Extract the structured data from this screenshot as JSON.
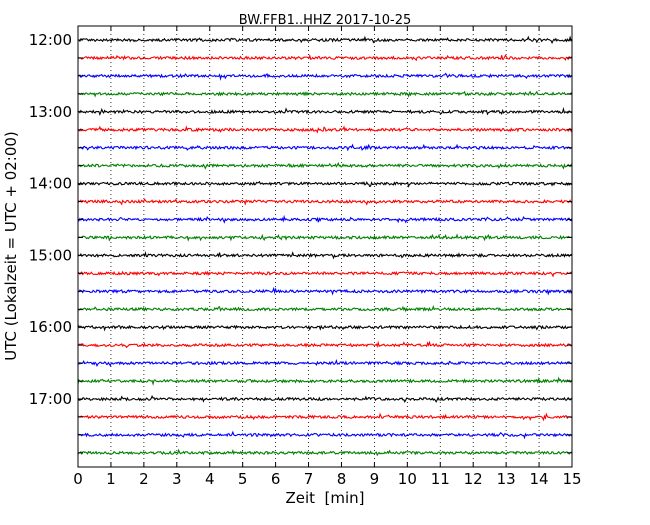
{
  "chart_data": {
    "type": "line",
    "title": "BW.FFB1..HHZ 2017-10-25",
    "xlabel": "Zeit  [min]",
    "ylabel": "UTC (Lokalzeit = UTC + 02:00)",
    "xlim": [
      0,
      15
    ],
    "x_ticks": [
      "0",
      "1",
      "2",
      "3",
      "4",
      "5",
      "6",
      "7",
      "8",
      "9",
      "10",
      "11",
      "12",
      "13",
      "14",
      "15"
    ],
    "y_tick_labels": [
      "12:00",
      "13:00",
      "14:00",
      "15:00",
      "16:00",
      "17:00"
    ],
    "grid": "vertical dotted",
    "trace_start_times": [
      "12:00",
      "12:15",
      "12:30",
      "12:45",
      "13:00",
      "13:15",
      "13:30",
      "13:45",
      "14:00",
      "14:15",
      "14:30",
      "14:45",
      "15:00",
      "15:15",
      "15:30",
      "15:45",
      "16:00",
      "16:15",
      "16:30",
      "16:45",
      "17:00",
      "17:15",
      "17:30",
      "17:45"
    ],
    "trace_colors": [
      "#000000",
      "#ff0000",
      "#0000ff",
      "#008000"
    ]
  }
}
